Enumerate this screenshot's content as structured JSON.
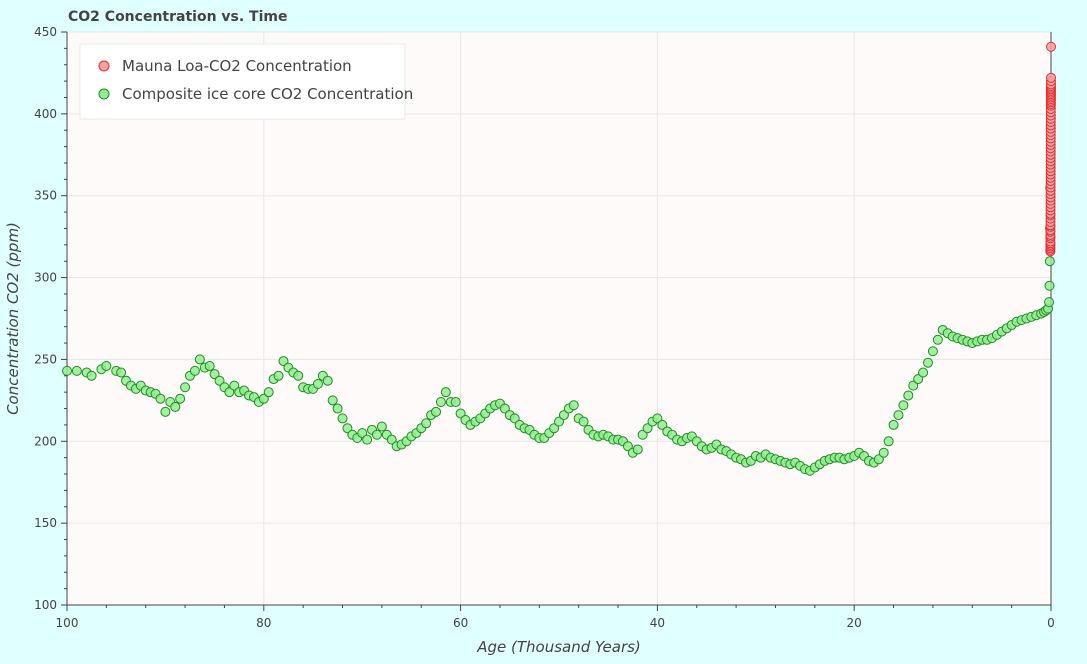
{
  "chart_data": {
    "type": "scatter",
    "title": "CO2 Concentration vs. Time",
    "xlabel": "Age (Thousand Years)",
    "ylabel": "Concentration CO2 (ppm)",
    "xlim": [
      100,
      0
    ],
    "ylim": [
      100,
      450
    ],
    "x_ticks": [
      "100",
      "80",
      "60",
      "40",
      "20",
      "0"
    ],
    "y_ticks": [
      "100",
      "150",
      "200",
      "250",
      "300",
      "350",
      "400",
      "450"
    ],
    "grid": true,
    "legend_position": "top-left",
    "series": [
      {
        "name": "Mauna Loa-CO2 Concentration",
        "fill_color": "#ffa0a0",
        "stroke_color": "#e03030",
        "x": [
          0.066,
          0.065,
          0.064,
          0.063,
          0.062,
          0.061,
          0.06,
          0.059,
          0.058,
          0.057,
          0.056,
          0.055,
          0.054,
          0.053,
          0.052,
          0.051,
          0.05,
          0.049,
          0.048,
          0.047,
          0.046,
          0.045,
          0.044,
          0.043,
          0.042,
          0.041,
          0.04,
          0.039,
          0.038,
          0.037,
          0.036,
          0.035,
          0.034,
          0.033,
          0.032,
          0.031,
          0.03,
          0.029,
          0.028,
          0.027,
          0.026,
          0.025,
          0.024,
          0.023,
          0.022,
          0.021,
          0.02,
          0.019,
          0.018,
          0.017,
          0.016,
          0.015,
          0.014,
          0.013,
          0.012,
          0.011,
          0.01,
          0.009,
          0.008,
          0.007,
          0.006,
          0.005,
          0.004,
          0.003,
          0.002,
          0.001,
          0.0
        ],
        "y": [
          316,
          317,
          318,
          319,
          320,
          321,
          322,
          324,
          325,
          326,
          328,
          329,
          331,
          332,
          334,
          336,
          338,
          339,
          341,
          343,
          345,
          347,
          349,
          351,
          353,
          355,
          357,
          359,
          361,
          363,
          365,
          367,
          369,
          371,
          373,
          375,
          377,
          379,
          381,
          383,
          385,
          387,
          389,
          391,
          393,
          395,
          397,
          399,
          401,
          403,
          405,
          406,
          407,
          408,
          409,
          410,
          411,
          412,
          413,
          414,
          415,
          416,
          417,
          418,
          420,
          422,
          441
        ]
      },
      {
        "name": "Composite ice core CO2 Concentration",
        "fill_color": "#90ee90",
        "stroke_color": "#228b22",
        "x": [
          100,
          99,
          98,
          97.5,
          96.5,
          96,
          95,
          94.5,
          94,
          93.5,
          93,
          92.5,
          92,
          91.5,
          91,
          90.5,
          90,
          89.5,
          89,
          88.5,
          88,
          87.5,
          87,
          86.5,
          86,
          85.5,
          85,
          84.5,
          84,
          83.5,
          83,
          82.5,
          82,
          81.5,
          81,
          80.5,
          80,
          79.5,
          79,
          78.5,
          78,
          77.5,
          77,
          76.5,
          76,
          75.5,
          75,
          74.5,
          74,
          73.5,
          73,
          72.5,
          72,
          71.5,
          71,
          70.5,
          70,
          69.5,
          69,
          68.5,
          68,
          67.5,
          67,
          66.5,
          66,
          65.5,
          65,
          64.5,
          64,
          63.5,
          63,
          62.5,
          62,
          61.5,
          61,
          60.5,
          60,
          59.5,
          59,
          58.5,
          58,
          57.5,
          57,
          56.5,
          56,
          55.5,
          55,
          54.5,
          54,
          53.5,
          53,
          52.5,
          52,
          51.5,
          51,
          50.5,
          50,
          49.5,
          49,
          48.5,
          48,
          47.5,
          47,
          46.5,
          46,
          45.5,
          45,
          44.5,
          44,
          43.5,
          43,
          42.5,
          42,
          41.5,
          41,
          40.5,
          40,
          39.5,
          39,
          38.5,
          38,
          37.5,
          37,
          36.5,
          36,
          35.5,
          35,
          34.5,
          34,
          33.5,
          33,
          32.5,
          32,
          31.5,
          31,
          30.5,
          30,
          29.5,
          29,
          28.5,
          28,
          27.5,
          27,
          26.5,
          26,
          25.5,
          25,
          24.5,
          24,
          23.5,
          23,
          22.5,
          22,
          21.5,
          21,
          20.5,
          20,
          19.5,
          19,
          18.5,
          18,
          17.5,
          17,
          16.5,
          16,
          15.5,
          15,
          14.5,
          14,
          13.5,
          13,
          12.5,
          12,
          11.5,
          11,
          10.5,
          10,
          9.5,
          9,
          8.5,
          8,
          7.5,
          7,
          6.5,
          6,
          5.5,
          5,
          4.5,
          4,
          3.5,
          3,
          2.5,
          2,
          1.5,
          1,
          0.7,
          0.5,
          0.3,
          0.2,
          0.15,
          0.12,
          0.1,
          0.08
        ],
        "y": [
          243,
          243,
          242,
          240,
          244,
          246,
          243,
          242,
          237,
          234,
          232,
          234,
          231,
          230,
          229,
          226,
          218,
          224,
          221,
          226,
          233,
          240,
          243,
          250,
          245,
          246,
          241,
          237,
          233,
          230,
          234,
          230,
          231,
          228,
          227,
          224,
          226,
          230,
          238,
          240,
          249,
          245,
          242,
          240,
          233,
          232,
          232,
          235,
          240,
          237,
          225,
          220,
          214,
          208,
          204,
          202,
          205,
          201,
          207,
          204,
          209,
          204,
          201,
          197,
          198,
          200,
          203,
          205,
          208,
          211,
          216,
          218,
          224,
          230,
          224,
          224,
          217,
          213,
          210,
          212,
          214,
          217,
          220,
          222,
          223,
          220,
          216,
          214,
          210,
          208,
          207,
          204,
          202,
          202,
          205,
          208,
          212,
          216,
          220,
          222,
          214,
          212,
          207,
          204,
          203,
          204,
          203,
          201,
          201,
          200,
          197,
          193,
          195,
          204,
          208,
          212,
          214,
          210,
          206,
          204,
          201,
          200,
          202,
          203,
          200,
          197,
          195,
          196,
          198,
          195,
          194,
          192,
          190,
          189,
          187,
          188,
          191,
          190,
          192,
          190,
          189,
          188,
          187,
          186,
          187,
          185,
          183,
          182,
          184,
          186,
          188,
          189,
          190,
          190,
          189,
          190,
          191,
          193,
          191,
          188,
          187,
          189,
          193,
          200,
          210,
          216,
          222,
          228,
          234,
          238,
          242,
          248,
          255,
          262,
          268,
          266,
          264,
          263,
          262,
          261,
          260,
          261,
          262,
          262,
          263,
          265,
          267,
          269,
          271,
          273,
          274,
          275,
          276,
          277,
          278,
          279,
          280,
          281,
          285,
          295,
          310,
          330,
          355
        ]
      }
    ]
  }
}
